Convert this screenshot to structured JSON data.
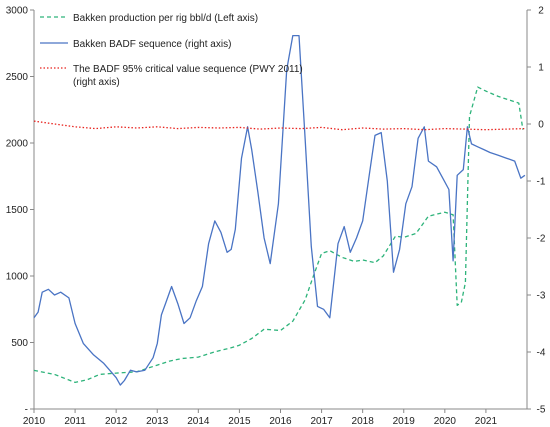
{
  "chart_data": {
    "type": "line",
    "title": "",
    "xlabel": "",
    "ylabel_left": "",
    "ylabel_right": "",
    "x_range": [
      2010,
      2022
    ],
    "x_ticks": [
      "2010",
      "2011",
      "2012",
      "2013",
      "2014",
      "2015",
      "2016",
      "2017",
      "2018",
      "2019",
      "2020",
      "2021"
    ],
    "left_axis": {
      "min": 0,
      "max": 3000,
      "ticks": [
        "-",
        "500",
        "1000",
        "1500",
        "2000",
        "2500",
        "3000"
      ]
    },
    "right_axis": {
      "min": -5,
      "max": 2,
      "ticks": [
        "-5",
        "-4",
        "-3",
        "-2",
        "-1",
        "0",
        "1",
        "2"
      ]
    },
    "grid": false,
    "legend_position": "top-left",
    "series": [
      {
        "name": "Bakken production per rig bbl/d (Left axis)",
        "axis": "left",
        "color": "#2db37a",
        "style": "dashed",
        "x": [
          2010,
          2010.5,
          2011,
          2011.3,
          2011.6,
          2012,
          2012.5,
          2013,
          2013.3,
          2013.6,
          2014,
          2014.4,
          2014.8,
          2015,
          2015.3,
          2015.6,
          2016,
          2016.3,
          2016.6,
          2016.8,
          2017,
          2017.2,
          2017.5,
          2017.8,
          2018,
          2018.3,
          2018.5,
          2018.8,
          2019,
          2019.3,
          2019.6,
          2020,
          2020.2,
          2020.3,
          2020.4,
          2020.5,
          2020.6,
          2020.8,
          2021,
          2021.3,
          2021.5,
          2021.8,
          2021.9
        ],
        "values": [
          290,
          260,
          200,
          220,
          260,
          270,
          280,
          330,
          360,
          380,
          390,
          430,
          460,
          480,
          530,
          600,
          590,
          660,
          820,
          1000,
          1170,
          1190,
          1140,
          1110,
          1120,
          1100,
          1150,
          1300,
          1290,
          1320,
          1450,
          1480,
          1460,
          780,
          800,
          950,
          2200,
          2420,
          2390,
          2350,
          2330,
          2300,
          2100
        ]
      },
      {
        "name": "Bakken BADF sequence (right axis)",
        "axis": "right",
        "color": "#4a74c4",
        "style": "solid",
        "x": [
          2010,
          2010.1,
          2010.2,
          2010.35,
          2010.5,
          2010.65,
          2010.85,
          2011,
          2011.2,
          2011.45,
          2011.7,
          2012,
          2012.1,
          2012.2,
          2012.35,
          2012.5,
          2012.7,
          2012.9,
          2013,
          2013.1,
          2013.2,
          2013.35,
          2013.5,
          2013.65,
          2013.8,
          2013.95,
          2014.1,
          2014.25,
          2014.4,
          2014.55,
          2014.7,
          2014.8,
          2014.9,
          2015.05,
          2015.2,
          2015.3,
          2015.45,
          2015.6,
          2015.75,
          2015.95,
          2016.15,
          2016.3,
          2016.45,
          2016.6,
          2016.75,
          2016.9,
          2017.05,
          2017.2,
          2017.4,
          2017.55,
          2017.7,
          2017.85,
          2018,
          2018.15,
          2018.3,
          2018.45,
          2018.6,
          2018.75,
          2018.9,
          2019.05,
          2019.2,
          2019.35,
          2019.5,
          2019.6,
          2019.8,
          2019.95,
          2020.1,
          2020.2,
          2020.3,
          2020.45,
          2020.55,
          2020.65,
          2020.8,
          2020.95,
          2021.1,
          2021.3,
          2021.5,
          2021.7,
          2021.85,
          2021.95
        ],
        "values": [
          -3.4,
          -3.3,
          -2.95,
          -2.9,
          -3.0,
          -2.95,
          -3.05,
          -3.5,
          -3.85,
          -4.05,
          -4.2,
          -4.45,
          -4.58,
          -4.5,
          -4.32,
          -4.35,
          -4.32,
          -4.1,
          -3.85,
          -3.35,
          -3.15,
          -2.85,
          -3.15,
          -3.5,
          -3.4,
          -3.1,
          -2.85,
          -2.1,
          -1.7,
          -1.9,
          -2.25,
          -2.2,
          -1.85,
          -0.6,
          -0.05,
          -0.45,
          -1.2,
          -2.0,
          -2.45,
          -1.4,
          0.95,
          1.55,
          1.55,
          -0.25,
          -2.15,
          -3.2,
          -3.25,
          -3.4,
          -2.1,
          -1.8,
          -2.25,
          -2.0,
          -1.7,
          -0.95,
          -0.2,
          -0.15,
          -1.0,
          -2.6,
          -2.2,
          -1.4,
          -1.1,
          -0.25,
          -0.05,
          -0.65,
          -0.75,
          -0.95,
          -1.15,
          -2.4,
          -0.9,
          -0.8,
          -0.05,
          -0.35,
          -0.4,
          -0.45,
          -0.5,
          -0.55,
          -0.6,
          -0.65,
          -0.95,
          -0.9
        ]
      },
      {
        "name": "The BADF 95% critical value sequence (PWY 2011) (right axis)",
        "axis": "right",
        "color": "#e8231e",
        "style": "dotted",
        "x": [
          2010,
          2010.5,
          2011,
          2011.5,
          2012,
          2012.5,
          2013,
          2013.5,
          2014,
          2014.5,
          2015,
          2015.5,
          2016,
          2016.5,
          2017,
          2017.5,
          2018,
          2018.5,
          2019,
          2019.5,
          2020,
          2020.5,
          2021,
          2021.5,
          2021.95
        ],
        "values": [
          0.05,
          0.0,
          -0.05,
          -0.08,
          -0.05,
          -0.07,
          -0.05,
          -0.08,
          -0.06,
          -0.07,
          -0.06,
          -0.09,
          -0.07,
          -0.08,
          -0.06,
          -0.1,
          -0.07,
          -0.09,
          -0.08,
          -0.1,
          -0.08,
          -0.09,
          -0.1,
          -0.09,
          -0.08
        ]
      }
    ]
  }
}
